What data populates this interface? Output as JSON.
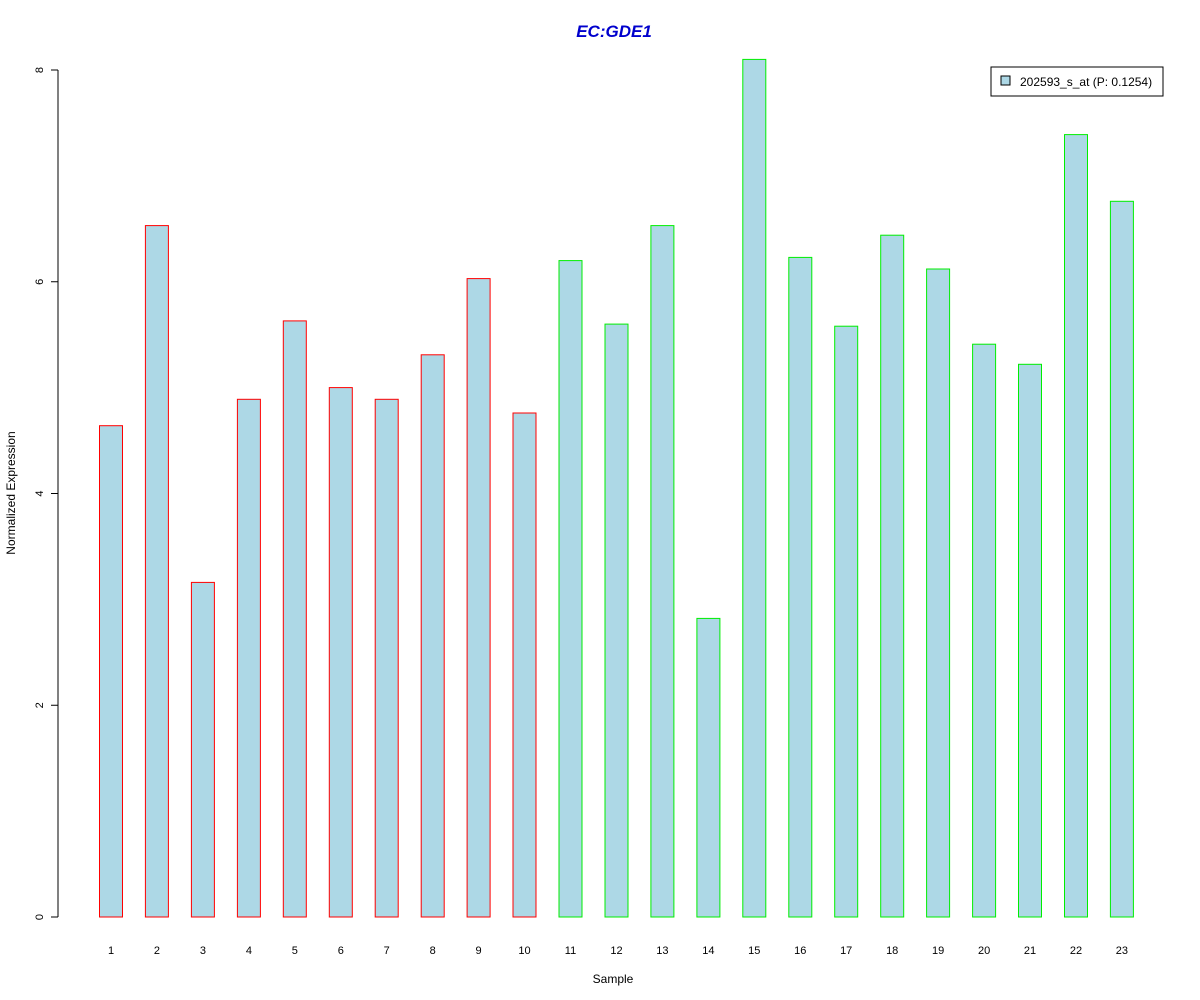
{
  "chart_data": {
    "type": "bar",
    "title": "EC:GDE1",
    "xlabel": "Sample",
    "ylabel": "Normalized Expression",
    "categories": [
      "1",
      "2",
      "3",
      "4",
      "5",
      "6",
      "7",
      "8",
      "9",
      "10",
      "11",
      "12",
      "13",
      "14",
      "15",
      "16",
      "17",
      "18",
      "19",
      "20",
      "21",
      "22",
      "23"
    ],
    "values": [
      4.64,
      6.53,
      3.16,
      4.89,
      5.63,
      5.0,
      4.89,
      5.31,
      6.03,
      4.76,
      6.2,
      5.6,
      6.53,
      2.82,
      8.1,
      6.23,
      5.58,
      6.44,
      6.12,
      5.41,
      5.22,
      7.39,
      6.76
    ],
    "groups": [
      "a",
      "a",
      "a",
      "a",
      "a",
      "a",
      "a",
      "a",
      "a",
      "a",
      "b",
      "b",
      "b",
      "b",
      "b",
      "b",
      "b",
      "b",
      "b",
      "b",
      "b",
      "b",
      "b"
    ],
    "ylim": [
      0,
      8
    ],
    "yticks": [
      0,
      2,
      4,
      6,
      8
    ],
    "legend": {
      "label": "202593_s_at (P: 0.1254)",
      "position": "top-right"
    },
    "colors": {
      "fill": "#ADD8E6",
      "group_a_border": "#FF0000",
      "group_b_border": "#00EE00",
      "title": "#0000CD"
    },
    "grid": false
  }
}
